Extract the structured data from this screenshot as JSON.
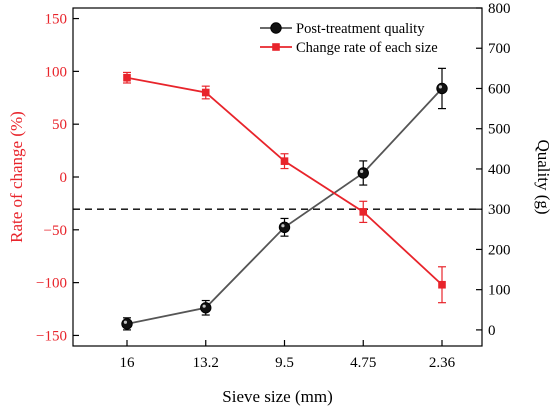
{
  "chart_data": {
    "type": "line",
    "title": "",
    "xlabel": "Sieve size (mm)",
    "x_categories": [
      "16",
      "13.2",
      "9.5",
      "4.75",
      "2.36"
    ],
    "left_axis": {
      "label": "Rate of change (%)",
      "range": [
        -160,
        160
      ],
      "ticks": [
        150,
        100,
        50,
        0,
        -50,
        -100,
        -150
      ],
      "tick_labels": [
        "150",
        "100",
        "50",
        "0",
        "−50",
        "−100",
        "−150"
      ],
      "color": "#e8242b"
    },
    "right_axis": {
      "label": "Quality (g)",
      "range": [
        -40,
        800
      ],
      "ticks": [
        0,
        100,
        200,
        300,
        400,
        500,
        600,
        700,
        800
      ],
      "tick_labels": [
        "0",
        "100",
        "200",
        "300",
        "400",
        "500",
        "600",
        "700",
        "800"
      ],
      "color": "#000000"
    },
    "series": [
      {
        "name": "Post-treatment quality",
        "axis": "right",
        "color": "#555555",
        "marker": "circle",
        "values": [
          15,
          55,
          255,
          390,
          600
        ],
        "errors": [
          15,
          18,
          22,
          30,
          50
        ]
      },
      {
        "name": "Change rate of each size",
        "axis": "left",
        "color": "#e8242b",
        "marker": "square",
        "values": [
          94,
          80,
          15,
          -33,
          -102
        ],
        "errors": [
          5,
          6,
          7,
          10,
          17
        ]
      }
    ],
    "reference_line": {
      "axis": "right",
      "value": 300,
      "style": "dashed"
    },
    "legend": {
      "position": "top-right"
    },
    "grid": false
  }
}
